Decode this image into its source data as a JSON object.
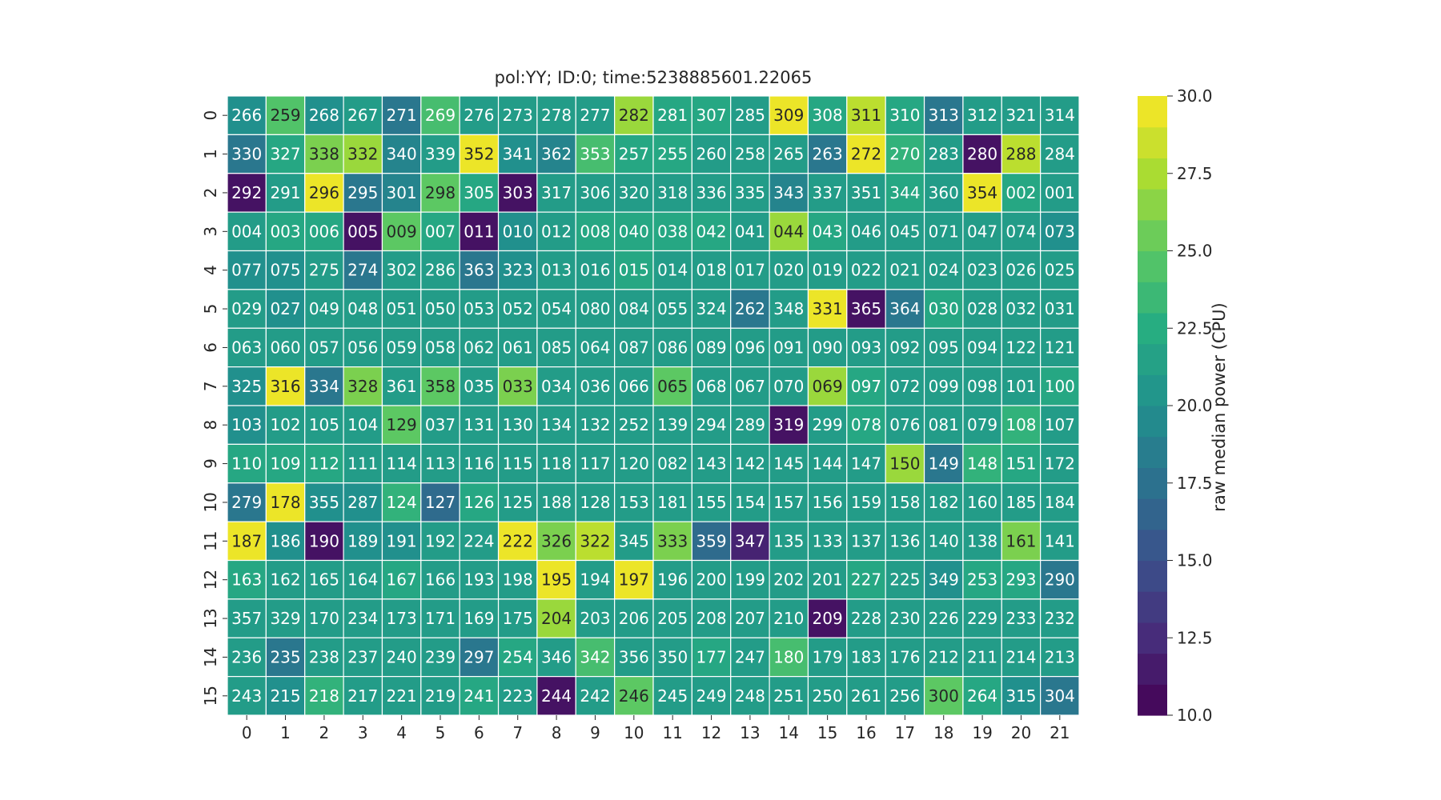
{
  "chart_data": {
    "type": "heatmap",
    "title": "pol:YY; ID:0; time:5238885601.22065",
    "xlabel": "",
    "ylabel": "",
    "x_tick_labels": [
      "0",
      "1",
      "2",
      "3",
      "4",
      "5",
      "6",
      "7",
      "8",
      "9",
      "10",
      "11",
      "12",
      "13",
      "14",
      "15",
      "16",
      "17",
      "18",
      "19",
      "20",
      "21"
    ],
    "y_tick_labels": [
      "0",
      "1",
      "2",
      "3",
      "4",
      "5",
      "6",
      "7",
      "8",
      "9",
      "10",
      "11",
      "12",
      "13",
      "14",
      "15"
    ],
    "cell_labels": [
      [
        "266",
        "259",
        "268",
        "267",
        "271",
        "269",
        "276",
        "273",
        "278",
        "277",
        "282",
        "281",
        "307",
        "285",
        "309",
        "308",
        "311",
        "310",
        "313",
        "312",
        "321",
        "314"
      ],
      [
        "330",
        "327",
        "338",
        "332",
        "340",
        "339",
        "352",
        "341",
        "362",
        "353",
        "257",
        "255",
        "260",
        "258",
        "265",
        "263",
        "272",
        "270",
        "283",
        "280",
        "288",
        "284"
      ],
      [
        "292",
        "291",
        "296",
        "295",
        "301",
        "298",
        "305",
        "303",
        "317",
        "306",
        "320",
        "318",
        "336",
        "335",
        "343",
        "337",
        "351",
        "344",
        "360",
        "354",
        "002",
        "001"
      ],
      [
        "004",
        "003",
        "006",
        "005",
        "009",
        "007",
        "011",
        "010",
        "012",
        "008",
        "040",
        "038",
        "042",
        "041",
        "044",
        "043",
        "046",
        "045",
        "071",
        "047",
        "074",
        "073"
      ],
      [
        "077",
        "075",
        "275",
        "274",
        "302",
        "286",
        "363",
        "323",
        "013",
        "016",
        "015",
        "014",
        "018",
        "017",
        "020",
        "019",
        "022",
        "021",
        "024",
        "023",
        "026",
        "025"
      ],
      [
        "029",
        "027",
        "049",
        "048",
        "051",
        "050",
        "053",
        "052",
        "054",
        "080",
        "084",
        "055",
        "324",
        "262",
        "348",
        "331",
        "365",
        "364",
        "030",
        "028",
        "032",
        "031"
      ],
      [
        "063",
        "060",
        "057",
        "056",
        "059",
        "058",
        "062",
        "061",
        "085",
        "064",
        "087",
        "086",
        "089",
        "096",
        "091",
        "090",
        "093",
        "092",
        "095",
        "094",
        "122",
        "121"
      ],
      [
        "325",
        "316",
        "334",
        "328",
        "361",
        "358",
        "035",
        "033",
        "034",
        "036",
        "066",
        "065",
        "068",
        "067",
        "070",
        "069",
        "097",
        "072",
        "099",
        "098",
        "101",
        "100"
      ],
      [
        "103",
        "102",
        "105",
        "104",
        "129",
        "037",
        "131",
        "130",
        "134",
        "132",
        "252",
        "139",
        "294",
        "289",
        "319",
        "299",
        "078",
        "076",
        "081",
        "079",
        "108",
        "107"
      ],
      [
        "110",
        "109",
        "112",
        "111",
        "114",
        "113",
        "116",
        "115",
        "118",
        "117",
        "120",
        "082",
        "143",
        "142",
        "145",
        "144",
        "147",
        "150",
        "149",
        "148",
        "151",
        "172"
      ],
      [
        "279",
        "178",
        "355",
        "287",
        "124",
        "127",
        "126",
        "125",
        "188",
        "128",
        "153",
        "181",
        "155",
        "154",
        "157",
        "156",
        "159",
        "158",
        "182",
        "160",
        "185",
        "184"
      ],
      [
        "187",
        "186",
        "190",
        "189",
        "191",
        "192",
        "224",
        "222",
        "326",
        "322",
        "345",
        "333",
        "359",
        "347",
        "135",
        "133",
        "137",
        "136",
        "140",
        "138",
        "161",
        "141"
      ],
      [
        "163",
        "162",
        "165",
        "164",
        "167",
        "166",
        "193",
        "198",
        "195",
        "194",
        "197",
        "196",
        "200",
        "199",
        "202",
        "201",
        "227",
        "225",
        "349",
        "253",
        "293",
        "290"
      ],
      [
        "357",
        "329",
        "170",
        "234",
        "173",
        "171",
        "169",
        "175",
        "204",
        "203",
        "206",
        "205",
        "208",
        "207",
        "210",
        "209",
        "228",
        "230",
        "226",
        "229",
        "233",
        "232"
      ],
      [
        "236",
        "235",
        "238",
        "237",
        "240",
        "239",
        "297",
        "254",
        "346",
        "342",
        "356",
        "350",
        "177",
        "247",
        "180",
        "179",
        "183",
        "176",
        "212",
        "211",
        "214",
        "213"
      ],
      [
        "243",
        "215",
        "218",
        "217",
        "221",
        "219",
        "241",
        "223",
        "244",
        "242",
        "246",
        "245",
        "249",
        "248",
        "251",
        "250",
        "261",
        "256",
        "300",
        "264",
        "315",
        "304"
      ]
    ],
    "values": [
      [
        20,
        24.5,
        20,
        21,
        18,
        24,
        21,
        21,
        21,
        21,
        27,
        22,
        22,
        21,
        29.5,
        22,
        28,
        22,
        18,
        21,
        21,
        21
      ],
      [
        18,
        22,
        26,
        27,
        19,
        21,
        29.5,
        20,
        19,
        24,
        22,
        22,
        21,
        21,
        21,
        18,
        29.5,
        23,
        21,
        11,
        28,
        21
      ],
      [
        11,
        21,
        29.5,
        18,
        19,
        25,
        22,
        11,
        21,
        21,
        21,
        21,
        21,
        21,
        19,
        21,
        21,
        22,
        21,
        29.5,
        22,
        21
      ],
      [
        21,
        22,
        22,
        11,
        25,
        22,
        11,
        20,
        21,
        22,
        22,
        22,
        22,
        21,
        27,
        22,
        21,
        21,
        21,
        21,
        21,
        20
      ],
      [
        20,
        20,
        21,
        18,
        21,
        21,
        18,
        20,
        21,
        21,
        22,
        21,
        21,
        21,
        21,
        21,
        21,
        21,
        21,
        21,
        21,
        21
      ],
      [
        21,
        20,
        21,
        21,
        21,
        21,
        21,
        21,
        21,
        21,
        21,
        21,
        21,
        18,
        21,
        29.5,
        11,
        18,
        22,
        21,
        21,
        21
      ],
      [
        21,
        21,
        21,
        21,
        21,
        21,
        21,
        21,
        21,
        21,
        21,
        21,
        21,
        21,
        21,
        21,
        21,
        21,
        21,
        21,
        21,
        21
      ],
      [
        20,
        29.5,
        18,
        26,
        21,
        25,
        21,
        26,
        21,
        21,
        21,
        25,
        21,
        21,
        21,
        27,
        22,
        21,
        21,
        21,
        21,
        22
      ],
      [
        20,
        21,
        21,
        21,
        25,
        21,
        21,
        21,
        21,
        21,
        21,
        21,
        21,
        21,
        11,
        21,
        22,
        21,
        21,
        21,
        23,
        21
      ],
      [
        22,
        22,
        22,
        21,
        21,
        21,
        21,
        21,
        21,
        21,
        21,
        21,
        21,
        21,
        21,
        21,
        21,
        27,
        18,
        23,
        22,
        21
      ],
      [
        18,
        29.5,
        20,
        20,
        23,
        17,
        22,
        21,
        21,
        21,
        21,
        21,
        21,
        21,
        21,
        21,
        21,
        21,
        21,
        21,
        21,
        21
      ],
      [
        29.5,
        20,
        11,
        20,
        20,
        21,
        21,
        29.5,
        26,
        28,
        21,
        26,
        17,
        12,
        21,
        21,
        21,
        21,
        21,
        21,
        26,
        21
      ],
      [
        22,
        21,
        21,
        21,
        22,
        21,
        21,
        21,
        29.5,
        21,
        29.5,
        21,
        21,
        21,
        21,
        21,
        22,
        21,
        20,
        22,
        22,
        18
      ],
      [
        21,
        21,
        21,
        21,
        21,
        21,
        21,
        21,
        27,
        21,
        21,
        21,
        21,
        21,
        21,
        11,
        21,
        21,
        21,
        21,
        21,
        21
      ],
      [
        21,
        18,
        21,
        21,
        21,
        21,
        18,
        22,
        21,
        24,
        21,
        21,
        22,
        21,
        24,
        21,
        21,
        21,
        21,
        21,
        21,
        21
      ],
      [
        21,
        20,
        23,
        21,
        21,
        21,
        22,
        21,
        11,
        21,
        25,
        21,
        21,
        21,
        21,
        21,
        21,
        21,
        25,
        22,
        20,
        18
      ]
    ],
    "vmin": 10,
    "vmax": 30,
    "colormap": "viridis",
    "colorbar": {
      "label": "raw median power (CPU)",
      "ticks": [
        "10.0",
        "12.5",
        "15.0",
        "17.5",
        "20.0",
        "22.5",
        "25.0",
        "27.5",
        "30.0"
      ],
      "levels": 20
    },
    "colors": {
      "cell_border": "#ffffff",
      "dark_text": "#262626",
      "light_text": "#ffffff",
      "axis_text": "#262626"
    }
  }
}
